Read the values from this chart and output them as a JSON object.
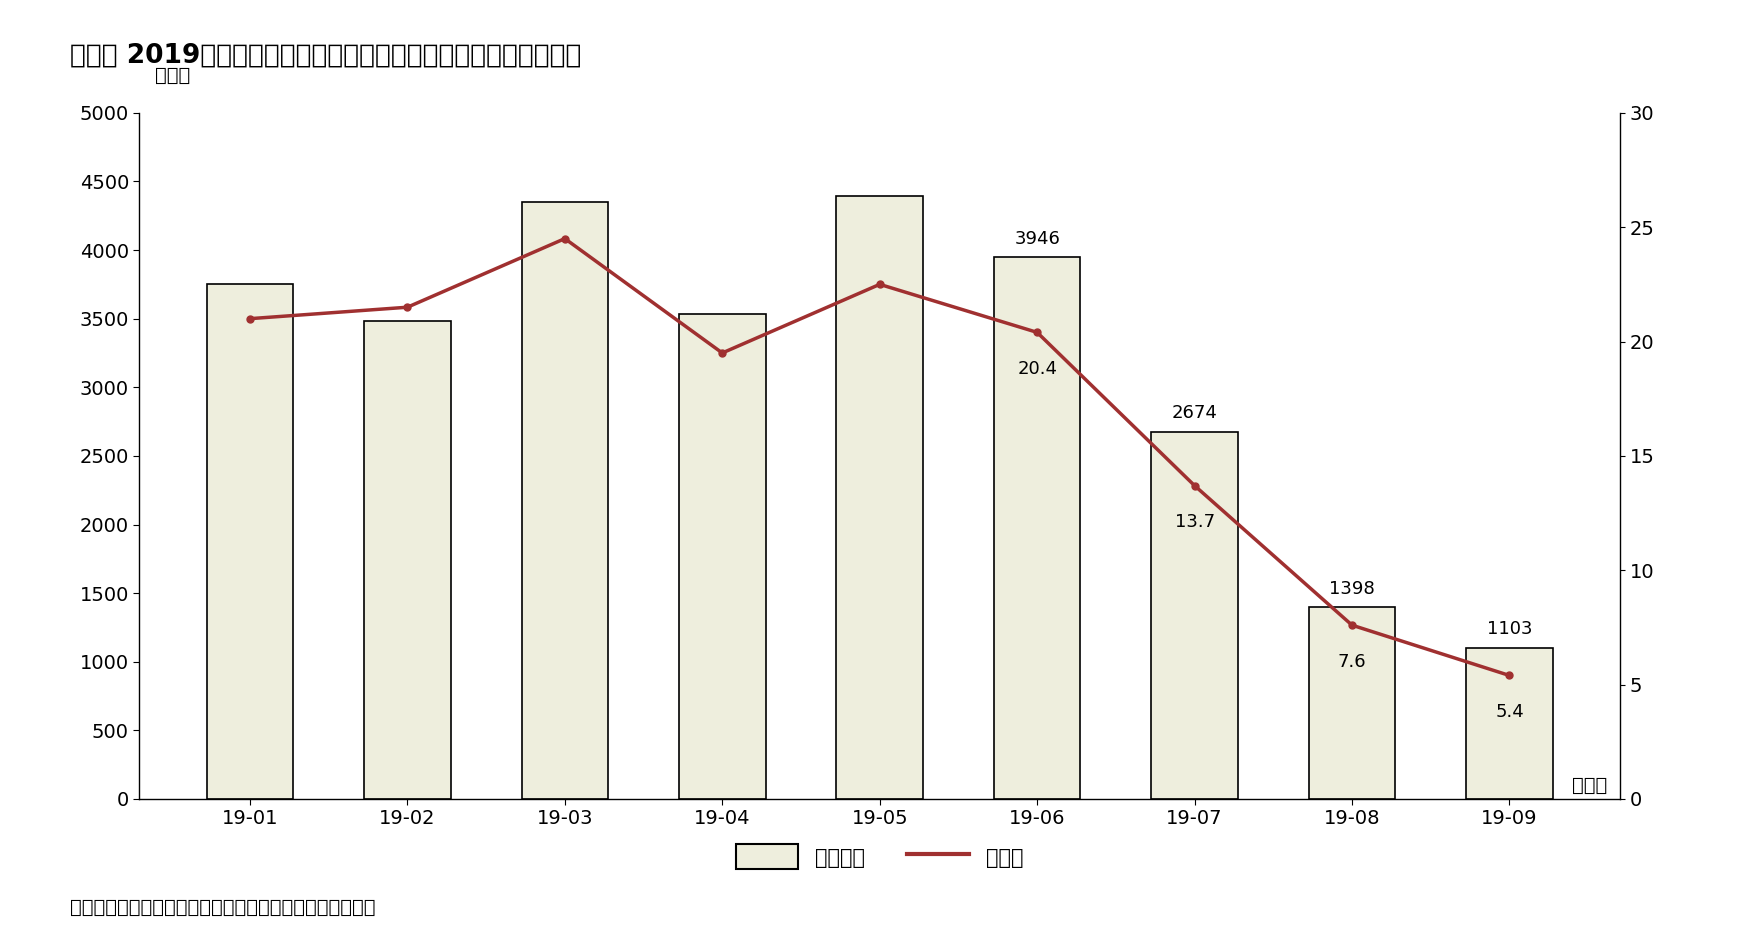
{
  "title": "図表４ 2019年の日本車の販売台数と輸入車に占める占有率の推移",
  "title_pre": "図表４",
  "title_year": "2019",
  "title_post": "年の日本車の販売台数と輸入車に占める占有率の推移",
  "categories": [
    "19-01",
    "19-02",
    "19-03",
    "19-04",
    "19-05",
    "19-06",
    "19-07",
    "19-08",
    "19-09"
  ],
  "sales": [
    3749,
    3484,
    4347,
    3536,
    4393,
    3946,
    2674,
    1398,
    1103
  ],
  "share": [
    21.0,
    21.5,
    24.5,
    19.5,
    22.5,
    20.4,
    13.7,
    7.6,
    5.4
  ],
  "bar_annot_indices": [
    5,
    6,
    7,
    8
  ],
  "bar_annot_values": [
    "3946",
    "2674",
    "1398",
    "1103"
  ],
  "share_annot_indices": [
    5,
    6,
    7,
    8
  ],
  "share_annot_values": [
    "20.4",
    "13.7",
    "7.6",
    "5.4"
  ],
  "bar_color": "#eeeedd",
  "bar_edge_color": "#000000",
  "line_color": "#a03030",
  "ylim_left": [
    0,
    5000
  ],
  "ylim_right": [
    0,
    30
  ],
  "yticks_left": [
    0,
    500,
    1000,
    1500,
    2000,
    2500,
    3000,
    3500,
    4000,
    4500,
    5000
  ],
  "yticks_right": [
    0,
    5,
    10,
    15,
    20,
    25,
    30
  ],
  "left_axis_label": "（台）",
  "right_axis_label": "（％）",
  "legend_bar_label": "販売台数",
  "legend_line_label": "占有率",
  "footer": "資料）韓国輸入自動車協会ホームページなどから筆者作成",
  "bg_color": "#ffffff",
  "title_fontsize": 19,
  "tick_fontsize": 14,
  "label_fontsize": 14,
  "annotation_fontsize": 13,
  "footer_fontsize": 14
}
